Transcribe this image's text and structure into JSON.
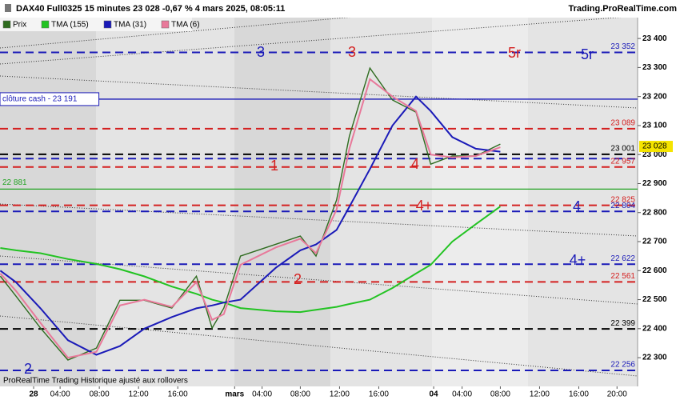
{
  "chart_data": {
    "type": "line",
    "title": "DAX40 Full0325 15 minutes 23 028 -0,67 % 4 mars 2025, 08:05:11",
    "source": "Trading.ProRealTime.com",
    "footer": "ProRealTime Trading  Historique ajusté aux rollovers",
    "x": [
      -3.4,
      -1.8,
      0.7,
      3.5,
      6.4,
      8.8,
      11.3,
      14.1,
      16.6,
      18.2,
      19.4,
      21.1,
      24.7,
      27.2,
      28.8,
      30.9,
      32.2,
      34.3,
      36.6,
      39.0,
      40.5,
      42.7,
      45.1,
      47.6
    ],
    "xlim": [
      -3.43,
      61.6
    ],
    "xticks": [
      {
        "value": 0,
        "label": "28"
      },
      {
        "value": 2.7,
        "label": "04:00"
      },
      {
        "value": 6.7,
        "label": "08:00"
      },
      {
        "value": 10.7,
        "label": "12:00"
      },
      {
        "value": 14.7,
        "label": "16:00"
      },
      {
        "value": 20.5,
        "label": "mars"
      },
      {
        "value": 23.3,
        "label": "04:00"
      },
      {
        "value": 27.2,
        "label": "08:00"
      },
      {
        "value": 31.2,
        "label": "12:00"
      },
      {
        "value": 35.2,
        "label": "16:00"
      },
      {
        "value": 40.8,
        "label": "04"
      },
      {
        "value": 43.7,
        "label": "04:00"
      },
      {
        "value": 47.6,
        "label": "08:00"
      },
      {
        "value": 51.6,
        "label": "12:00"
      },
      {
        "value": 55.6,
        "label": "16:00"
      },
      {
        "value": 59.5,
        "label": "20:00"
      }
    ],
    "ylim": [
      22201,
      23472
    ],
    "yticks": [
      {
        "value": 22300,
        "label": "22 300"
      },
      {
        "value": 22400,
        "label": "22 400"
      },
      {
        "value": 22500,
        "label": "22 500"
      },
      {
        "value": 22600,
        "label": "22 600"
      },
      {
        "value": 22700,
        "label": "22 700"
      },
      {
        "value": 22800,
        "label": "22 800"
      },
      {
        "value": 22900,
        "label": "22 900"
      },
      {
        "value": 23000,
        "label": "23 000"
      },
      {
        "value": 23100,
        "label": "23 100"
      },
      {
        "value": 23200,
        "label": "23 200"
      },
      {
        "value": 23300,
        "label": "23 300"
      },
      {
        "value": 23400,
        "label": "23 400"
      }
    ],
    "series": [
      {
        "name": "Prix",
        "color": "#2e6b1f",
        "values": [
          22581,
          22512,
          22402,
          22292,
          22333,
          22498,
          22498,
          22471,
          22581,
          22402,
          22471,
          22650,
          22691,
          22719,
          22650,
          22843,
          23063,
          23298,
          23188,
          23146,
          22967,
          22995,
          22995,
          23036
        ]
      },
      {
        "name": "TMA (155)",
        "color": "#22c322",
        "values": [
          22678,
          22670,
          22660,
          22640,
          22623,
          22605,
          22580,
          22545,
          22520,
          22500,
          22490,
          22471,
          22460,
          22457,
          22465,
          22475,
          22485,
          22500,
          22540,
          22590,
          22620,
          22700,
          22760,
          22821
        ]
      },
      {
        "name": "TMA (31)",
        "color": "#1a1ab8",
        "values": [
          22600,
          22560,
          22470,
          22360,
          22310,
          22340,
          22400,
          22440,
          22470,
          22480,
          22490,
          22500,
          22610,
          22670,
          22690,
          22740,
          22820,
          22950,
          23100,
          23200,
          23150,
          23060,
          23020,
          23010
        ]
      },
      {
        "name": "TMA (6)",
        "color": "#e8799a",
        "values": [
          22590,
          22530,
          22420,
          22300,
          22320,
          22480,
          22500,
          22475,
          22560,
          22430,
          22450,
          22620,
          22680,
          22710,
          22660,
          22810,
          23020,
          23260,
          23200,
          23150,
          23000,
          22990,
          22995,
          23025
        ]
      }
    ],
    "last_price": {
      "value": 23028,
      "label": "23 028"
    },
    "levels": [
      {
        "value": 23352,
        "label": "23 352",
        "color": "#1a1ab8",
        "style": "dashed",
        "side": "right"
      },
      {
        "value": 23191,
        "label": "clôture cash - 23 191",
        "color": "#1a1ab8",
        "style": "solid",
        "side": "left"
      },
      {
        "value": 23089,
        "label": "23 089",
        "color": "#d42020",
        "style": "dashed",
        "side": "right"
      },
      {
        "value": 23001,
        "label": "23 001",
        "color": "#000000",
        "style": "dashed",
        "side": "right"
      },
      {
        "value": 22986,
        "color": "#1a1ab8",
        "style": "dashed",
        "side": "right"
      },
      {
        "value": 22957,
        "label": "22 957",
        "color": "#d42020",
        "style": "dashed",
        "side": "right"
      },
      {
        "value": 22881,
        "label": "22 881",
        "color": "#22a322",
        "style": "solid",
        "side": "left"
      },
      {
        "value": 22825,
        "label": "22 825",
        "color": "#d42020",
        "style": "dashed",
        "side": "right"
      },
      {
        "value": 22804,
        "label": "22 804",
        "color": "#1a1ab8",
        "style": "dashed",
        "side": "right"
      },
      {
        "value": 22622,
        "label": "22 622",
        "color": "#1a1ab8",
        "style": "dashed",
        "side": "right"
      },
      {
        "value": 22561,
        "label": "22 561",
        "color": "#d42020",
        "style": "dashed",
        "side": "right"
      },
      {
        "value": 22399,
        "label": "22 399",
        "color": "#000000",
        "style": "dashed",
        "side": "right"
      },
      {
        "value": 22256,
        "label": "22 256",
        "color": "#1a1ab8",
        "style": "dashed",
        "side": "right"
      }
    ],
    "annotations": [
      {
        "text": "1",
        "color": "#d42020"
      },
      {
        "text": "2",
        "color": "#d42020"
      },
      {
        "text": "3",
        "color": "#1a1ab8"
      },
      {
        "text": "3",
        "color": "#d42020"
      },
      {
        "text": "4",
        "color": "#d42020"
      },
      {
        "text": "4+",
        "color": "#d42020"
      },
      {
        "text": "5r",
        "color": "#d42020"
      },
      {
        "text": "5r",
        "color": "#1a1ab8"
      },
      {
        "text": "4",
        "color": "#1a1ab8"
      },
      {
        "text": "4+",
        "color": "#1a1ab8"
      },
      {
        "text": "2",
        "color": "#1a1ab8"
      }
    ]
  }
}
